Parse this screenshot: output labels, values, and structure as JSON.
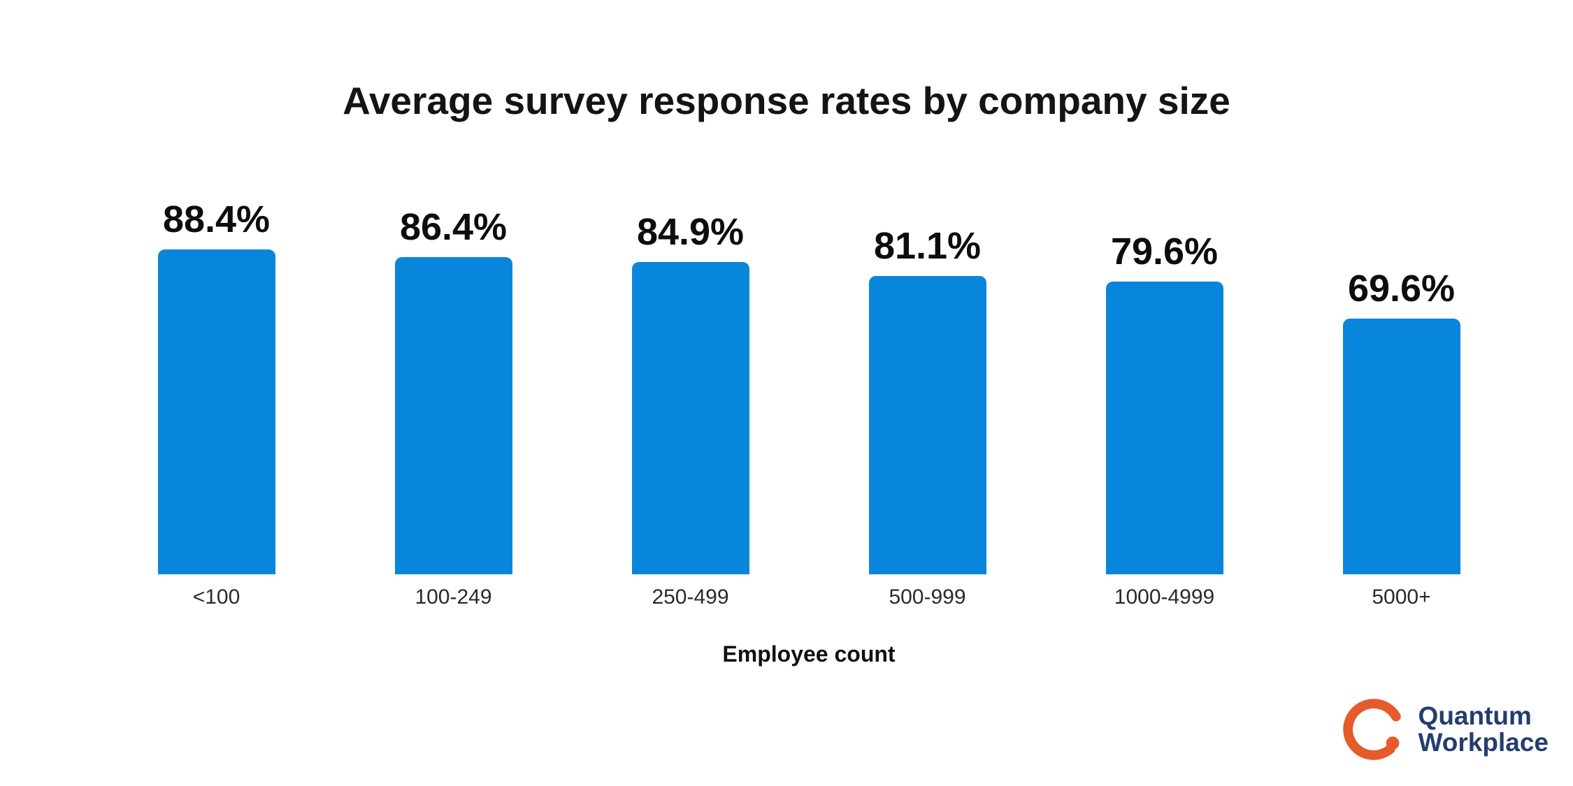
{
  "title": "Average survey response rates by company size",
  "chart_data": {
    "type": "bar",
    "categories": [
      "<100",
      "100-249",
      "250-499",
      "500-999",
      "1000-4999",
      "5000+"
    ],
    "values": [
      88.4,
      86.4,
      84.9,
      81.1,
      79.6,
      69.6
    ],
    "value_labels": [
      "88.4%",
      "86.4%",
      "84.9%",
      "81.1%",
      "79.6%",
      "69.6%"
    ],
    "title": "Average survey response rates by company size",
    "xlabel": "Employee count",
    "ylabel": "",
    "ylim": [
      0,
      100
    ],
    "grid": false,
    "legend": "none",
    "bar_color": "#0886DC",
    "value_label_position": "above-bar"
  },
  "xlabel": "Employee count",
  "logo": {
    "line1": "Quantum",
    "line2": "Workplace",
    "mark": "open-ring-q-icon",
    "orange": "#E55B2C",
    "navy": "#243D6F"
  }
}
